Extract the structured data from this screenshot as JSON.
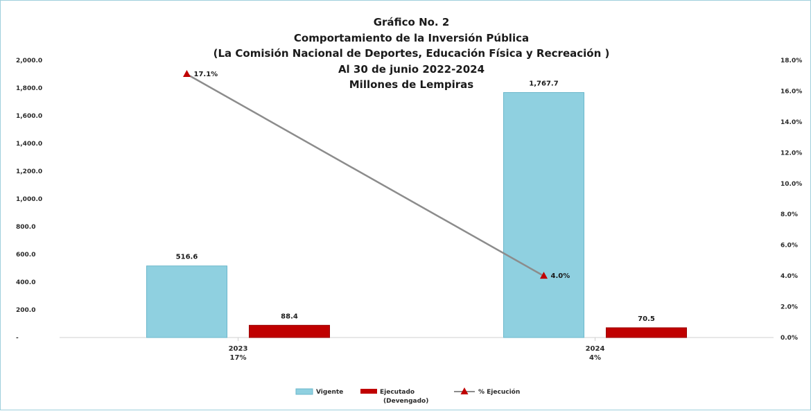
{
  "chart_data": {
    "type": "bar",
    "title_lines": [
      "Gráfico No. 2",
      "Comportamiento de la Inversión Pública",
      "(La Comisión Nacional de Deportes, Educación Física y Recreación )",
      "Al 30 de junio 2022-2024",
      "Millones de Lempiras"
    ],
    "categories": [
      "2023",
      "2024"
    ],
    "category_sublabels": [
      "17%",
      "4%"
    ],
    "series": [
      {
        "name": "Vigente",
        "kind": "bar",
        "axis": "left",
        "color": "#8fd0e0",
        "values": [
          516.6,
          1767.7
        ],
        "labels": [
          "516.6",
          "1,767.7"
        ]
      },
      {
        "name": "Ejecutado (Devengado)",
        "kind": "bar",
        "axis": "left",
        "color": "#c00000",
        "values": [
          88.4,
          70.5
        ],
        "labels": [
          "88.4",
          "70.5"
        ]
      },
      {
        "name": "% Ejecución",
        "kind": "line",
        "axis": "right",
        "color": "#c00000",
        "line_color": "#8c8c8c",
        "marker": "triangle",
        "values": [
          17.1,
          4.0
        ],
        "labels": [
          "17.1%",
          "4.0%"
        ]
      }
    ],
    "legend": {
      "placement": "bottom",
      "items": [
        {
          "lines": [
            "Vigente"
          ]
        },
        {
          "lines": [
            "Ejecutado",
            "(Devengado)"
          ]
        },
        {
          "lines": [
            "% Ejecución"
          ]
        }
      ]
    },
    "y_left": {
      "ylim": [
        0,
        2000
      ],
      "ticks": [
        {
          "value": 0,
          "label": "-"
        },
        {
          "value": 200,
          "label": "200.0"
        },
        {
          "value": 400,
          "label": "400.0"
        },
        {
          "value": 600,
          "label": "600.0"
        },
        {
          "value": 800,
          "label": "800.0"
        },
        {
          "value": 1000,
          "label": "1,000.0"
        },
        {
          "value": 1200,
          "label": "1,200.0"
        },
        {
          "value": 1400,
          "label": "1,400.0"
        },
        {
          "value": 1600,
          "label": "1,600.0"
        },
        {
          "value": 1800,
          "label": "1,800.0"
        },
        {
          "value": 2000,
          "label": "2,000.0"
        }
      ]
    },
    "y_right": {
      "ylim": [
        0,
        18
      ],
      "ticks": [
        {
          "value": 0,
          "label": "0.0%"
        },
        {
          "value": 2,
          "label": "2.0%"
        },
        {
          "value": 4,
          "label": "4.0%"
        },
        {
          "value": 6,
          "label": "6.0%"
        },
        {
          "value": 8,
          "label": "8.0%"
        },
        {
          "value": 10,
          "label": "10.0%"
        },
        {
          "value": 12,
          "label": "12.0%"
        },
        {
          "value": 14,
          "label": "14.0%"
        },
        {
          "value": 16,
          "label": "16.0%"
        },
        {
          "value": 18,
          "label": "18.0%"
        }
      ]
    },
    "grid": false
  }
}
